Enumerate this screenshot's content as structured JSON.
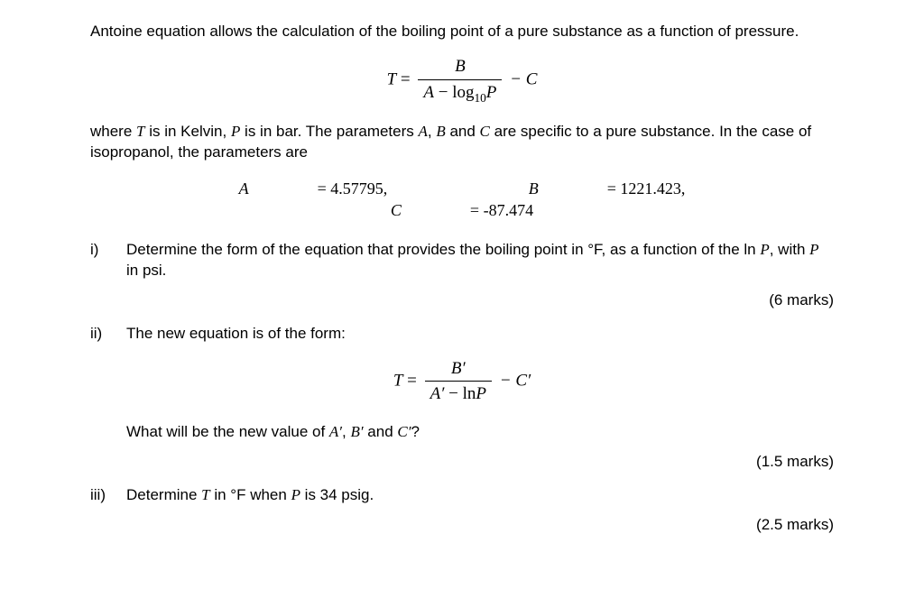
{
  "intro1": "Antoine equation allows the calculation of the boiling point of a pure substance as a function of pressure.",
  "eq1": {
    "lhs": "T",
    "eq": " = ",
    "num": "B",
    "den_A": "A",
    "den_minus": " − ",
    "den_log": "log",
    "den_10": "10",
    "den_P": "P",
    "tail": " − C"
  },
  "intro2_a": "where ",
  "intro2_T": "T",
  "intro2_b": " is in Kelvin, ",
  "intro2_P": "P",
  "intro2_c": " is in bar. The parameters ",
  "intro2_Av": "A",
  "intro2_d": ", ",
  "intro2_Bv": "B",
  "intro2_e": " and ",
  "intro2_Cv": "C",
  "intro2_f": " are specific to a pure substance. In the case of isopropanol, the parameters are",
  "params": {
    "A_lbl": "A",
    "A_val": " = 4.57795,",
    "B_lbl": "B",
    "B_val": " = 1221.423,",
    "C_lbl": "C",
    "C_val": " = -87.474"
  },
  "i": {
    "label": "i)",
    "text_a": "Determine the form of the equation that provides the boiling point in °F, as a function of the ln ",
    "text_P1": "P",
    "text_b": ", with ",
    "text_P2": "P",
    "text_c": " in psi.",
    "marks": "(6 marks)"
  },
  "ii": {
    "label": "ii)",
    "lead": "The new equation is of the form:",
    "eq": {
      "lhs": "T",
      "eq": " = ",
      "num": "B′",
      "den_A": "A′",
      "den_minus": " − ln",
      "den_P": "P",
      "tail": " − C′"
    },
    "q_a": "What will be the new value of ",
    "q_A": "A′",
    "q_b": ", ",
    "q_B": "B′",
    "q_c": " and ",
    "q_C": "C′",
    "q_d": "?",
    "marks": "(1.5 marks)"
  },
  "iii": {
    "label": "iii)",
    "text_a": "Determine ",
    "text_T": "T",
    "text_b": " in °F when ",
    "text_P": "P",
    "text_c": " is 34 psig.",
    "marks": "(2.5 marks)"
  }
}
